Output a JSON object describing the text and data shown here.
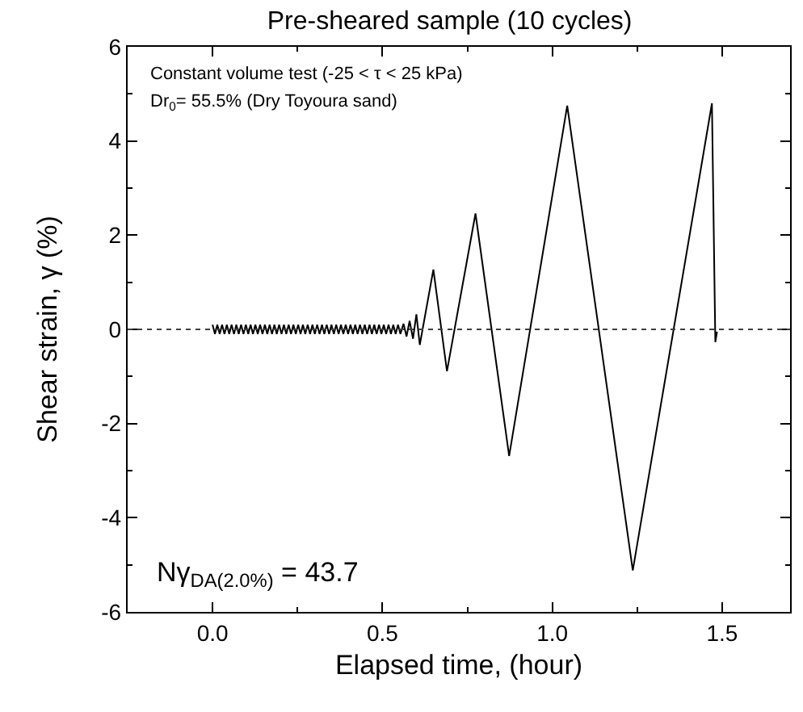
{
  "chart_data": {
    "type": "line",
    "title": "Pre-sheared sample (10 cycles)",
    "xlabel": "Elapsed time, (hour)",
    "ylabel": "Shear strain, γ (%)",
    "xlim": [
      -0.25,
      1.7
    ],
    "xticks": [
      {
        "value": 0,
        "label": "0.0"
      },
      0.5,
      {
        "value": 1,
        "label": "1.0"
      },
      1.5
    ],
    "ylim": [
      -6,
      6
    ],
    "yticks": [
      -6,
      -4,
      -2,
      0,
      2,
      4,
      6
    ],
    "grid": false,
    "marker": "none",
    "line_style": "solid",
    "ref_lines": [
      {
        "axis": "y",
        "value": 0,
        "line_style": "dotted",
        "color": "#404040"
      }
    ],
    "annotations": [
      "Constant volume test (-25 < τ < 25 kPa)",
      "Dr$_{0}$= 55.5% (Dry Toyoura sand)",
      "Nγ$_{DA(2.0%)}$ = 43.7"
    ],
    "series": [
      {
        "color": "#000000",
        "x": [
          0.0,
          0.007,
          0.014,
          0.021,
          0.028,
          0.035,
          0.042,
          0.049,
          0.056,
          0.063,
          0.07,
          0.077,
          0.084,
          0.091,
          0.098,
          0.105,
          0.112,
          0.119,
          0.126,
          0.133,
          0.14,
          0.147,
          0.154,
          0.161,
          0.168,
          0.175,
          0.182,
          0.189,
          0.196,
          0.203,
          0.21,
          0.217,
          0.224,
          0.231,
          0.238,
          0.245,
          0.252,
          0.259,
          0.266,
          0.273,
          0.28,
          0.287,
          0.294,
          0.301,
          0.308,
          0.315,
          0.322,
          0.329,
          0.336,
          0.343,
          0.35,
          0.357,
          0.364,
          0.371,
          0.378,
          0.385,
          0.392,
          0.399,
          0.406,
          0.413,
          0.42,
          0.427,
          0.434,
          0.441,
          0.448,
          0.455,
          0.462,
          0.469,
          0.476,
          0.483,
          0.49,
          0.497,
          0.504,
          0.511,
          0.518,
          0.525,
          0.532,
          0.539,
          0.546,
          0.553,
          0.562,
          0.571,
          0.58,
          0.59,
          0.6,
          0.61,
          0.65,
          0.69,
          0.774,
          0.873,
          1.044,
          1.237,
          1.47,
          1.48,
          1.485
        ],
        "values": [
          0.1,
          -0.1,
          0.1,
          -0.1,
          0.1,
          -0.1,
          0.1,
          -0.1,
          0.1,
          -0.1,
          0.1,
          -0.1,
          0.1,
          -0.1,
          0.1,
          -0.1,
          0.1,
          -0.1,
          0.1,
          -0.1,
          0.1,
          -0.1,
          0.1,
          -0.1,
          0.1,
          -0.1,
          0.1,
          -0.1,
          0.1,
          -0.1,
          0.1,
          -0.1,
          0.1,
          -0.1,
          0.1,
          -0.1,
          0.1,
          -0.1,
          0.1,
          -0.1,
          0.1,
          -0.1,
          0.1,
          -0.1,
          0.1,
          -0.1,
          0.1,
          -0.1,
          0.1,
          -0.1,
          0.1,
          -0.1,
          0.1,
          -0.1,
          0.1,
          -0.1,
          0.1,
          -0.1,
          0.1,
          -0.1,
          0.1,
          -0.1,
          0.1,
          -0.1,
          0.1,
          -0.1,
          0.1,
          -0.1,
          0.1,
          -0.1,
          0.1,
          -0.1,
          0.1,
          -0.1,
          0.1,
          -0.1,
          0.1,
          -0.1,
          0.1,
          -0.1,
          0.12,
          -0.15,
          0.18,
          -0.2,
          0.32,
          -0.33,
          1.27,
          -0.89,
          2.46,
          -2.69,
          4.75,
          -5.12,
          4.8,
          -0.27,
          -0.05
        ]
      }
    ]
  }
}
